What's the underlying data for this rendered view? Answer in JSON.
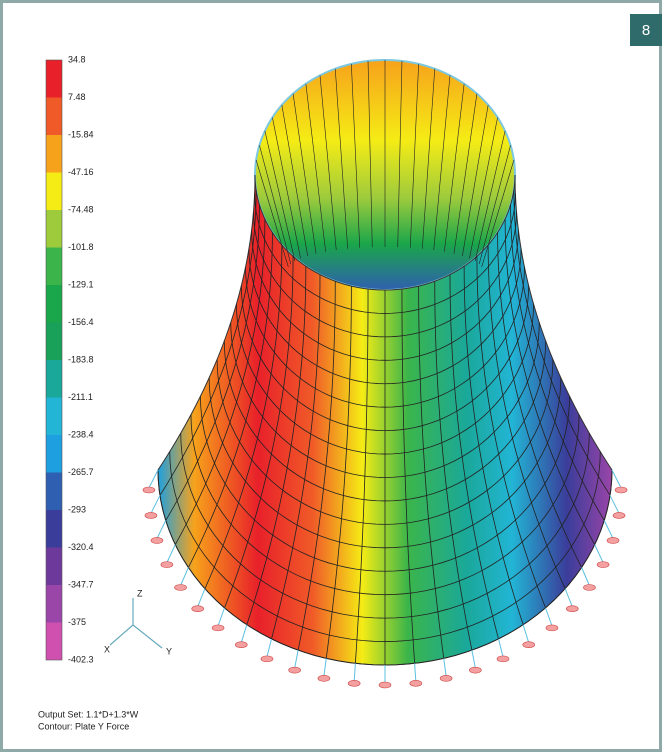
{
  "badge": "8",
  "legend": {
    "labels": [
      "34.8",
      "7.48",
      "-15.84",
      "-47.16",
      "-74.48",
      "-101.8",
      "-129.1",
      "-156.4",
      "-183.8",
      "-211.1",
      "-238.4",
      "-265.7",
      "-293",
      "-320.4",
      "-347.7",
      "-375",
      "-402.3"
    ]
  },
  "axes": {
    "z": "Z",
    "x": "X",
    "y": "Y"
  },
  "caption": {
    "line1": "Output Set: 1.1*D+1.3*W",
    "line2": "Contour: Plate Y Force"
  }
}
